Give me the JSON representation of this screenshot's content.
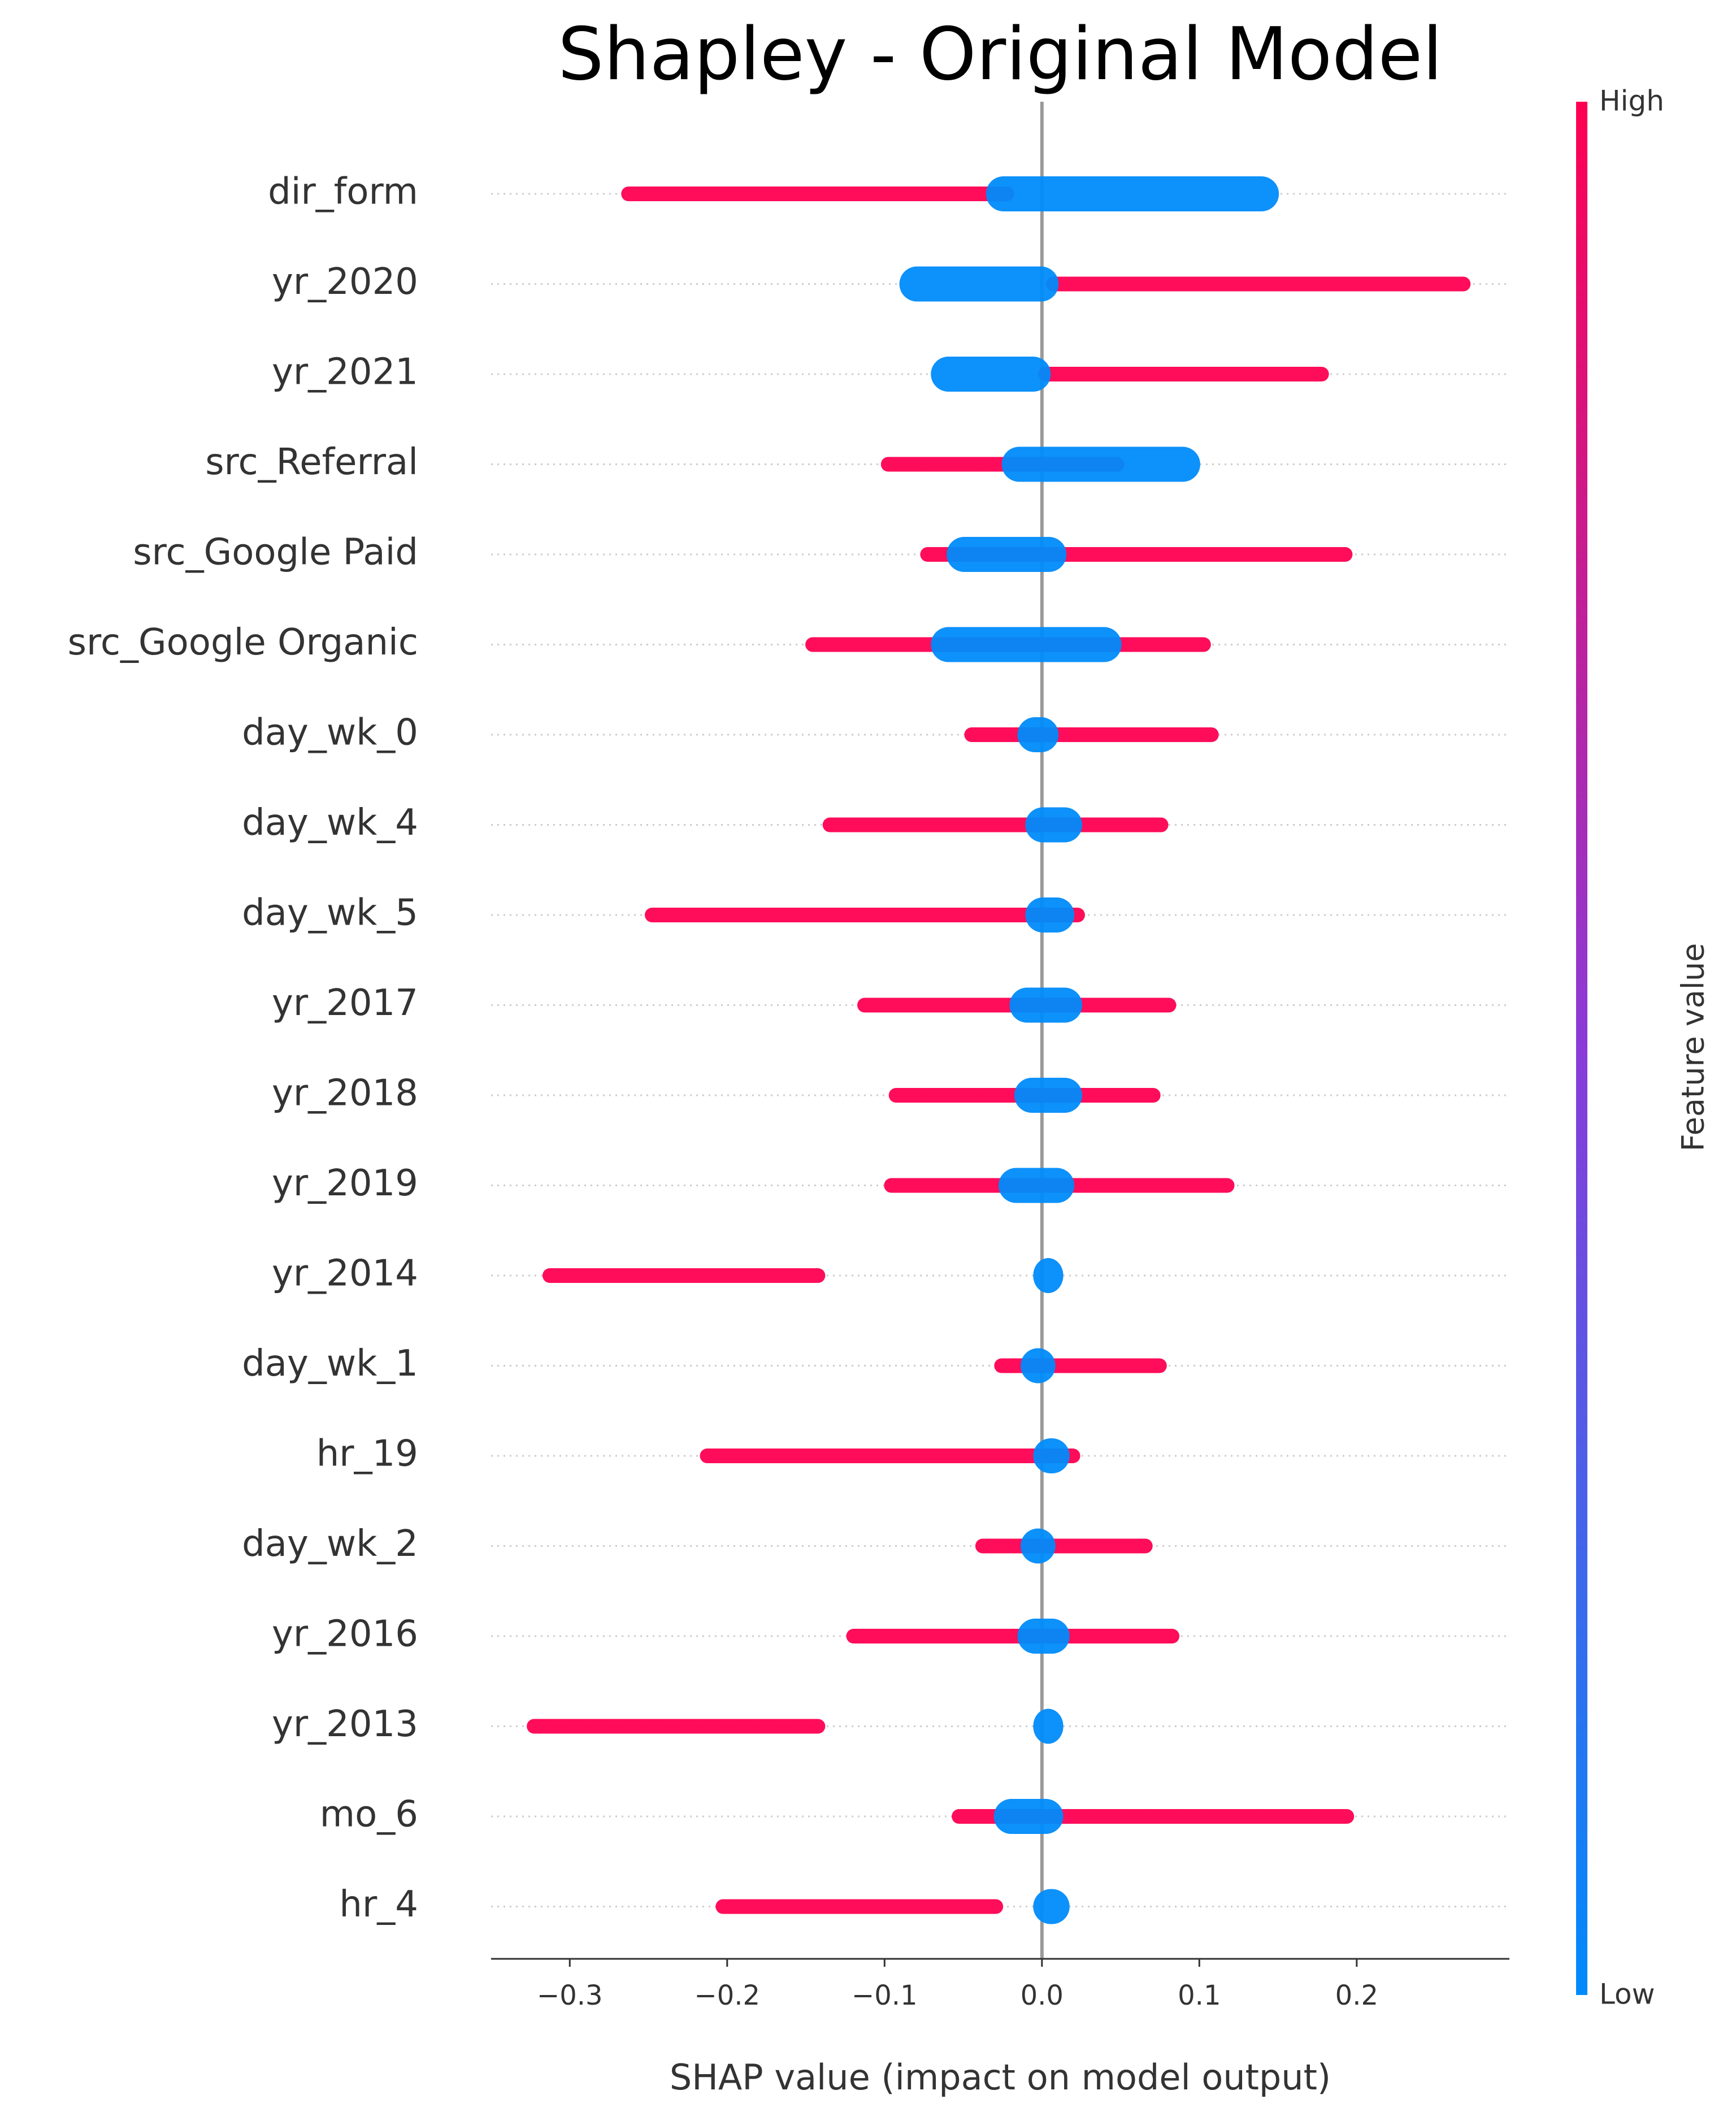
{
  "chart_data": {
    "type": "beeswarm",
    "title": "Shapley - Original Model",
    "xlabel": "SHAP value (impact on model output)",
    "colorbar_label": "Feature value",
    "categories": [
      "dir_form",
      "yr_2020",
      "yr_2021",
      "src_Referral",
      "src_Google Paid",
      "src_Google Organic",
      "day_wk_0",
      "day_wk_4",
      "day_wk_5",
      "yr_2017",
      "yr_2018",
      "yr_2019",
      "yr_2014",
      "day_wk_1",
      "hr_19",
      "day_wk_2",
      "yr_2016",
      "yr_2013",
      "mo_6",
      "hr_4"
    ],
    "series": [
      {
        "name": "High",
        "color": "#ff0051",
        "min": [
          -0.265,
          0.005,
          0.0,
          -0.1,
          -0.075,
          -0.148,
          -0.047,
          -0.137,
          -0.25,
          -0.115,
          -0.095,
          -0.098,
          -0.315,
          -0.028,
          -0.215,
          -0.04,
          -0.122,
          -0.325,
          -0.055,
          -0.205
        ],
        "max": [
          -0.02,
          0.27,
          0.18,
          0.05,
          0.195,
          0.105,
          0.11,
          0.078,
          0.025,
          0.083,
          0.073,
          0.12,
          -0.14,
          0.077,
          0.022,
          0.068,
          0.085,
          -0.14,
          0.196,
          -0.027
        ]
      },
      {
        "name": "Low",
        "color": "#008bfb",
        "min": [
          -0.03,
          -0.085,
          -0.065,
          -0.02,
          -0.055,
          -0.065,
          -0.01,
          -0.005,
          -0.005,
          -0.015,
          -0.012,
          -0.022,
          0.0,
          -0.008,
          0.0,
          -0.008,
          -0.01,
          0.0,
          -0.025,
          0.0
        ],
        "max": [
          0.145,
          0.005,
          0.0,
          0.095,
          0.01,
          0.045,
          0.005,
          0.02,
          0.015,
          0.02,
          0.02,
          0.015,
          0.008,
          0.003,
          0.012,
          0.003,
          0.012,
          0.008,
          0.008,
          0.012
        ]
      }
    ],
    "xlim": [
      -0.35,
      0.297
    ],
    "xticks": [
      {
        "value": -0.3,
        "label": "−0.3"
      },
      {
        "value": -0.2,
        "label": "−0.2"
      },
      {
        "value": -0.1,
        "label": "−0.1"
      },
      {
        "value": 0.0,
        "label": "0.0"
      },
      0.1,
      0.2
    ]
  }
}
